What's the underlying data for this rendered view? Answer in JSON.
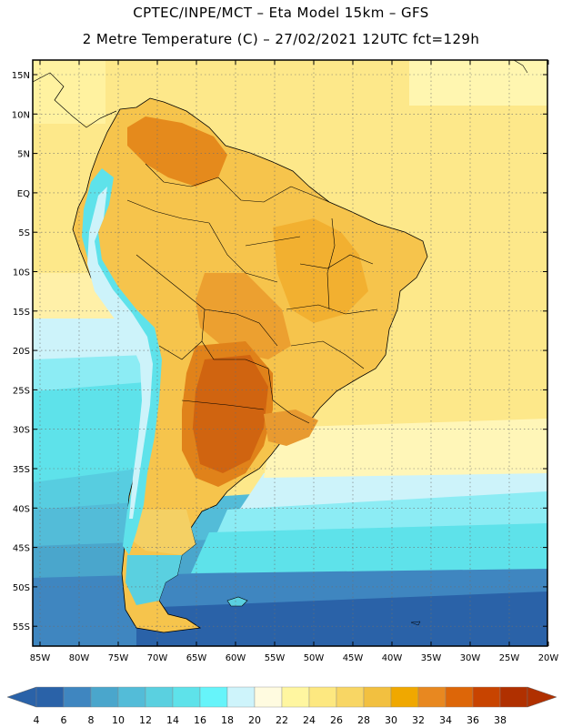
{
  "header": {
    "title_line1": "CPTEC/INPE/MCT –  Eta Model 15km – GFS",
    "title_line2": "2 Metre Temperature (C) – 27/02/2021 12UTC fct=129h"
  },
  "map": {
    "lat_labels": [
      "15N",
      "10N",
      "5N",
      "EQ",
      "5S",
      "10S",
      "15S",
      "20S",
      "25S",
      "30S",
      "35S",
      "40S",
      "45S",
      "50S",
      "55S"
    ],
    "lon_labels": [
      "85W",
      "80W",
      "75W",
      "70W",
      "65W",
      "60W",
      "55W",
      "50W",
      "45W",
      "40W",
      "35W",
      "30W",
      "25W",
      "20W"
    ]
  },
  "colorbar": {
    "labels": [
      "4",
      "6",
      "8",
      "10",
      "12",
      "14",
      "16",
      "18",
      "20",
      "22",
      "24",
      "26",
      "28",
      "30",
      "32",
      "34",
      "36",
      "38"
    ],
    "colors": [
      "#2a62a8",
      "#3f86c0",
      "#4aa6cc",
      "#53bcd8",
      "#5ad0e0",
      "#5ee2ea",
      "#66f4fa",
      "#cef4fb",
      "#fffbe0",
      "#fff6a0",
      "#fde880",
      "#f8d664",
      "#f2c040",
      "#f0a800",
      "#e88820",
      "#dd6608",
      "#c84400",
      "#b03000"
    ],
    "low_color": "#2a62a8",
    "high_color": "#b03000"
  }
}
